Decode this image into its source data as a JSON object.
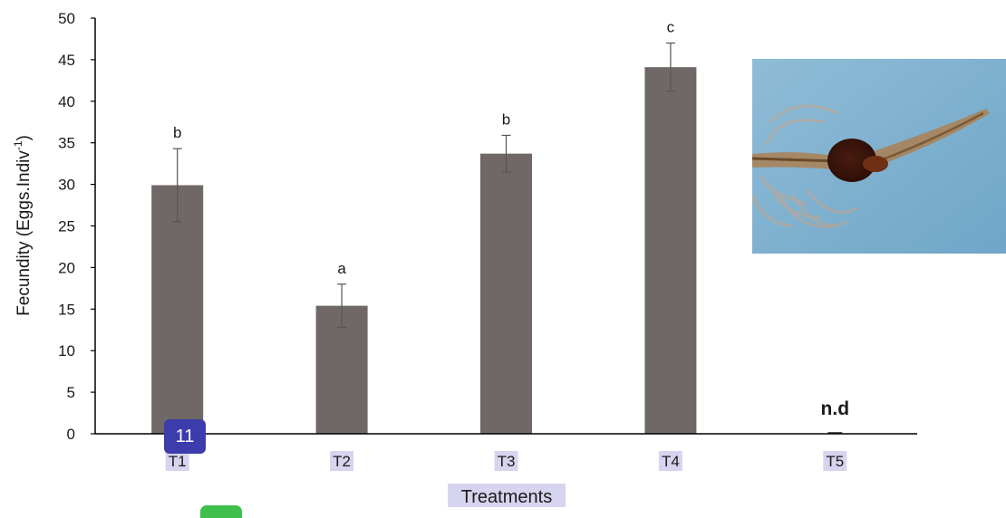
{
  "chart_data": {
    "type": "bar",
    "categories": [
      "T1",
      "T2",
      "T3",
      "T4",
      "T5"
    ],
    "values": [
      29.9,
      15.4,
      33.7,
      44.1,
      0
    ],
    "errors": [
      4.4,
      2.6,
      2.2,
      2.9,
      0
    ],
    "labels": [
      "b",
      "a",
      "b",
      "c",
      "n.d"
    ],
    "xlabel": "Treatments",
    "ylabel": "Fecundity (Eggs.Indiv",
    "ylabel_sup": "-1",
    "ylabel_close": ")",
    "ylim": [
      0,
      50
    ],
    "yticks": [
      0,
      5,
      10,
      15,
      20,
      25,
      30,
      35,
      40,
      45,
      50
    ],
    "bar_color": "#6f6867",
    "highlight_color": "#d6d4ee",
    "grid": false,
    "legend": "none"
  },
  "overlay": {
    "marker_label": "11",
    "marker_color": "#3c3cad",
    "tab_color": "#3fbf4c"
  },
  "photo": {
    "description_icon": "brine-shrimp-photo"
  }
}
